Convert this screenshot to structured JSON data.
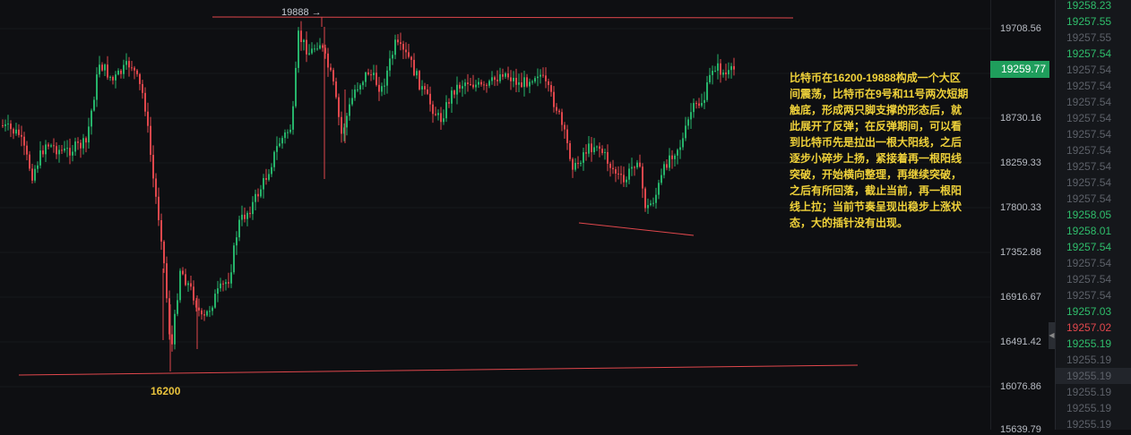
{
  "chart": {
    "resistance_label": "19888 →",
    "support_label": "16200",
    "annotation": "比特币在16200-19888构成一个大区间震荡，比特币在9号和11号两次短期触底，形成两只脚支撑的形态后，就此展开了反弹；在反弹期间，可以看到比特币先是拉出一根大阳线，之后逐步小碎步上扬，紧接着再一根阳线突破，开始横向整理，再继续突破，之后有所回落，截止当前，再一根阳线上拉；当前节奏呈现出稳步上涨状态，大的插针没有出现。",
    "up_color": "#26b36a",
    "down_color": "#e0474c",
    "line_color": "#e0474c"
  },
  "price_axis": {
    "ticks": [
      "19708.56",
      "18730.16",
      "18259.33",
      "17800.33",
      "17352.88",
      "16916.67",
      "16491.42",
      "16076.86",
      "15639.79"
    ],
    "current_price": "19259.77"
  },
  "orderbook": {
    "rows": [
      {
        "price": "19258.23",
        "color": "#2fbd6b"
      },
      {
        "price": "19257.55",
        "color": "#2fbd6b"
      },
      {
        "price": "19257.55",
        "color": "#5c6068"
      },
      {
        "price": "19257.54",
        "color": "#2fbd6b"
      },
      {
        "price": "19257.54",
        "color": "#5c6068"
      },
      {
        "price": "19257.54",
        "color": "#5c6068"
      },
      {
        "price": "19257.54",
        "color": "#5c6068"
      },
      {
        "price": "19257.54",
        "color": "#5c6068"
      },
      {
        "price": "19257.54",
        "color": "#5c6068"
      },
      {
        "price": "19257.54",
        "color": "#5c6068"
      },
      {
        "price": "19257.54",
        "color": "#5c6068"
      },
      {
        "price": "19257.54",
        "color": "#5c6068"
      },
      {
        "price": "19257.54",
        "color": "#5c6068"
      },
      {
        "price": "19258.05",
        "color": "#2fbd6b"
      },
      {
        "price": "19258.01",
        "color": "#2fbd6b"
      },
      {
        "price": "19257.54",
        "color": "#2fbd6b"
      },
      {
        "price": "19257.54",
        "color": "#5c6068"
      },
      {
        "price": "19257.54",
        "color": "#5c6068"
      },
      {
        "price": "19257.54",
        "color": "#5c6068"
      },
      {
        "price": "19257.03",
        "color": "#2fbd6b"
      },
      {
        "price": "19257.02",
        "color": "#e0474c"
      },
      {
        "price": "19255.19",
        "color": "#2fbd6b"
      },
      {
        "price": "19255.19",
        "color": "#5c6068"
      },
      {
        "price": "19255.19",
        "color": "#5c6068"
      },
      {
        "price": "19255.19",
        "color": "#5c6068"
      },
      {
        "price": "19255.19",
        "color": "#5c6068"
      },
      {
        "price": "19255.19",
        "color": "#5c6068"
      }
    ]
  }
}
